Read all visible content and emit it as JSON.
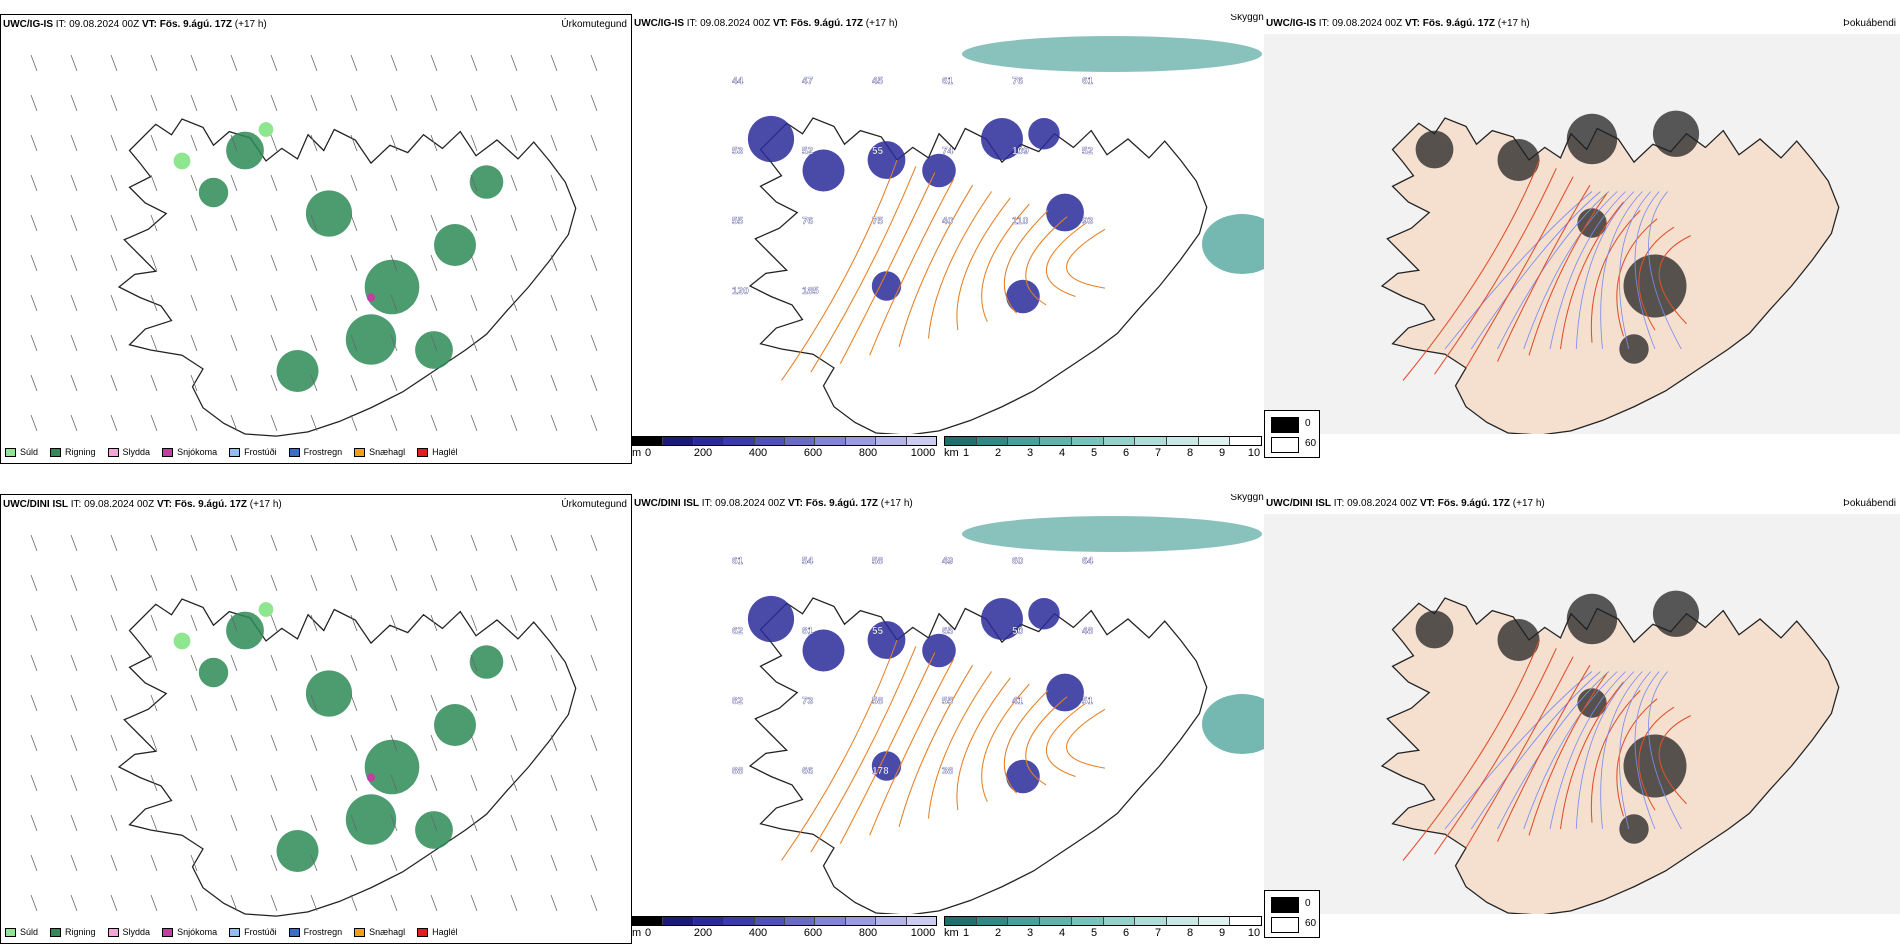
{
  "legend": {
    "items": [
      {
        "label": "Súld",
        "color": "#8ee68e"
      },
      {
        "label": "Rigning",
        "color": "#2e8b57"
      },
      {
        "label": "Slydda",
        "color": "#f4a6d7"
      },
      {
        "label": "Snjókoma",
        "color": "#c040a0"
      },
      {
        "label": "Frostúði",
        "color": "#8fbfef"
      },
      {
        "label": "Frostregn",
        "color": "#3a70c0"
      },
      {
        "label": "Snæhagl",
        "color": "#f0a020"
      },
      {
        "label": "Haglél",
        "color": "#e02020"
      }
    ]
  },
  "ceiling_bar": {
    "unit": "m",
    "ticks": [
      "0",
      "200",
      "400",
      "600",
      "800",
      "1000"
    ],
    "colors": [
      "#000000",
      "#1a1a7a",
      "#2a2a9a",
      "#3a3aaa",
      "#5050b8",
      "#6a6ac4",
      "#8484d0",
      "#9c9cdc",
      "#b4b4e6",
      "#ccccf0"
    ]
  },
  "visibility_bar": {
    "unit": "km",
    "ticks": [
      "1",
      "2",
      "3",
      "4",
      "5",
      "6",
      "7",
      "8",
      "9",
      "10"
    ],
    "colors": [
      "#1f6f6a",
      "#2f8a84",
      "#48a09a",
      "#62b2ac",
      "#7cc2bc",
      "#96d0cb",
      "#b0dcd8",
      "#c8e8e5",
      "#e0f2f0",
      "#ffffff"
    ]
  },
  "overlay_legend": {
    "items": [
      {
        "label": "0",
        "color": "#000000"
      },
      {
        "label": "60",
        "color": "#ffffff"
      }
    ]
  },
  "rows": [
    {
      "model": "UWC/IG-IS",
      "it_label": "IT:",
      "it_value": "09.08.2024 00Z",
      "vt_label": "VT:",
      "vt_value": "Fös. 9.ágú. 17Z",
      "lead": "(+17 h)",
      "panels": {
        "precip_type": "Úrkomutegund",
        "ceiling": "Skyggni",
        "overlay": "Þokuábendi"
      },
      "labels": [
        {
          "v": "44"
        },
        {
          "v": "47"
        },
        {
          "v": "45"
        },
        {
          "v": "61"
        },
        {
          "v": "76"
        },
        {
          "v": "61"
        },
        {
          "v": "53"
        },
        {
          "v": "52"
        },
        {
          "v": "55"
        },
        {
          "v": "74"
        },
        {
          "v": "109"
        },
        {
          "v": "52"
        },
        {
          "v": "55"
        },
        {
          "v": "76"
        },
        {
          "v": "75"
        },
        {
          "v": "40"
        },
        {
          "v": "110"
        },
        {
          "v": "93"
        },
        {
          "v": "120"
        },
        {
          "v": "185"
        }
      ]
    },
    {
      "model": "UWC/DINI ISL",
      "it_label": "IT:",
      "it_value": "09.08.2024 00Z",
      "vt_label": "VT:",
      "vt_value": "Fös. 9.ágú. 17Z",
      "lead": "(+17 h)",
      "panels": {
        "precip_type": "Úrkomutegund",
        "ceiling": "Skyggni",
        "overlay": "Þokuábendi"
      },
      "labels": [
        {
          "v": "61"
        },
        {
          "v": "54"
        },
        {
          "v": "58"
        },
        {
          "v": "49"
        },
        {
          "v": "60"
        },
        {
          "v": "64"
        },
        {
          "v": "62"
        },
        {
          "v": "81"
        },
        {
          "v": "55"
        },
        {
          "v": "65"
        },
        {
          "v": "50"
        },
        {
          "v": "48"
        },
        {
          "v": "82"
        },
        {
          "v": "73"
        },
        {
          "v": "58"
        },
        {
          "v": "55"
        },
        {
          "v": "41"
        },
        {
          "v": "51"
        },
        {
          "v": "88"
        },
        {
          "v": "66"
        },
        {
          "v": "178"
        },
        {
          "v": "38"
        }
      ]
    }
  ]
}
